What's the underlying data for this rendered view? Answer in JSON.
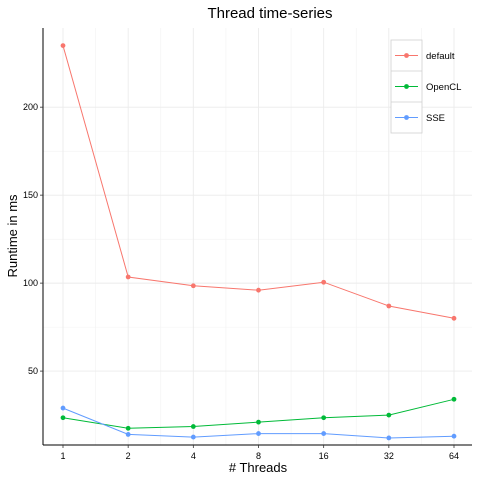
{
  "chart_data": {
    "type": "line",
    "title": "Thread time-series",
    "xlabel": "# Threads",
    "ylabel": "Runtime in ms",
    "categories": [
      "1",
      "2",
      "4",
      "8",
      "16",
      "32",
      "64"
    ],
    "yticks": [
      50,
      100,
      150,
      200
    ],
    "ylim": [
      8,
      245
    ],
    "grid": true,
    "legend_position": "top-right",
    "series": [
      {
        "name": "default",
        "color": "#F8766D",
        "values": [
          235,
          103.5,
          98.5,
          96,
          100.5,
          87,
          80
        ]
      },
      {
        "name": "OpenCL",
        "color": "#00BA38",
        "values": [
          23.5,
          17.5,
          18.5,
          21,
          23.5,
          25,
          34
        ]
      },
      {
        "name": "SSE",
        "color": "#619CFF",
        "values": [
          29,
          14,
          12.5,
          14.5,
          14.5,
          12,
          13
        ]
      }
    ]
  }
}
